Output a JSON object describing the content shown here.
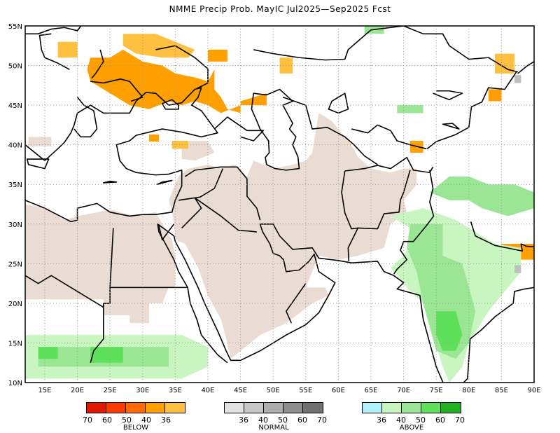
{
  "title": "NMME Precip Prob. MayIC  Jul2025—Sep2025 Fcst",
  "map": {
    "lon_range": [
      12,
      90
    ],
    "lat_range": [
      10,
      55
    ],
    "lat_labels": [
      "55N",
      "50N",
      "45N",
      "40N",
      "35N",
      "30N",
      "25N",
      "20N",
      "15N",
      "10N"
    ],
    "lon_labels": [
      "15E",
      "20E",
      "25E",
      "30E",
      "35E",
      "40E",
      "45E",
      "50E",
      "55E",
      "60E",
      "65E",
      "70E",
      "75E",
      "80E",
      "85E",
      "90E"
    ],
    "grid": true,
    "colors": {
      "below_40": "#ffa000",
      "below_36": "#ffc040",
      "normal_dry": "#eadcd2",
      "above_36": "#c8f5c0",
      "above_40": "#9ae694",
      "above_50": "#5fe05a",
      "normal_grey": "#bfbfbf"
    }
  },
  "legend": {
    "below": {
      "label": "BELOW",
      "ticks": [
        "70",
        "60",
        "50",
        "40",
        "36"
      ],
      "colors": [
        "#e01800",
        "#ff3a00",
        "#ff6a00",
        "#ffa000",
        "#ffc040"
      ]
    },
    "normal": {
      "label": "NORMAL",
      "ticks": [
        "36",
        "40",
        "50",
        "60",
        "70"
      ],
      "colors": [
        "#e2e2e2",
        "#c8c8c8",
        "#adadad",
        "#8e8e8e",
        "#707070"
      ]
    },
    "above": {
      "label": "ABOVE",
      "ticks": [
        "36",
        "40",
        "50",
        "60",
        "70"
      ],
      "colors": [
        "#b0f0f8",
        "#c8f5c0",
        "#9ae694",
        "#5fe05a",
        "#20b020"
      ]
    }
  }
}
